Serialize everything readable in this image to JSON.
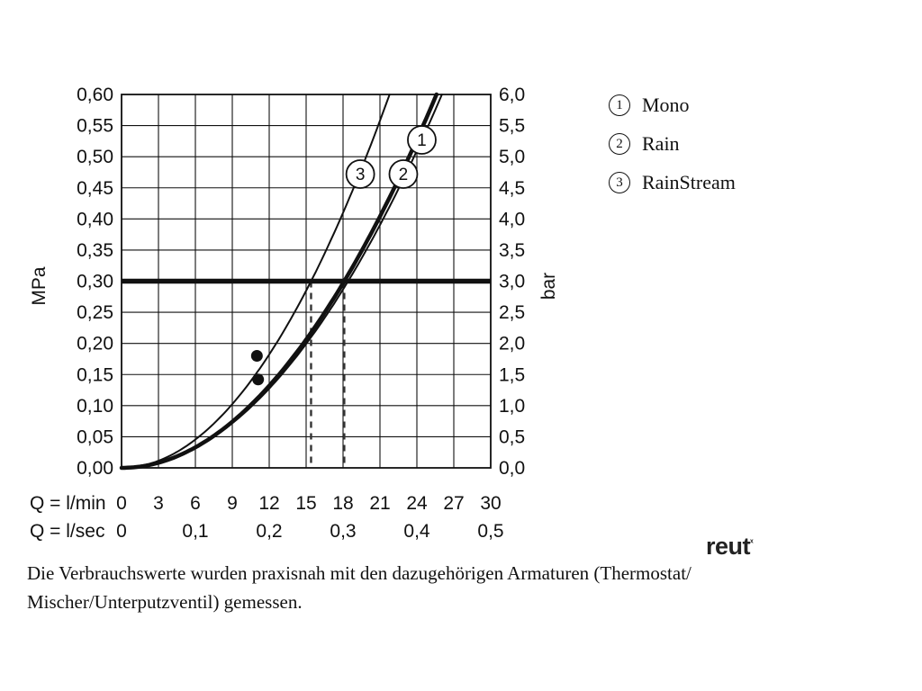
{
  "chart_data": {
    "type": "line",
    "x_axis": {
      "label": "Q = l/min",
      "max": 30,
      "tick_step": 3,
      "tick_labels": [
        "0",
        "3",
        "6",
        "9",
        "12",
        "15",
        "18",
        "21",
        "24",
        "27",
        "30"
      ]
    },
    "x_axis2": {
      "label": "Q = l/sec",
      "tick_step": 6,
      "tick_labels": [
        "0",
        "0,1",
        "0,2",
        "0,3",
        "0,4",
        "0,5"
      ]
    },
    "y_axis_left": {
      "label": "MPa",
      "max": 0.6,
      "tick_step": 0.05,
      "tick_labels": [
        "0,00",
        "0,05",
        "0,10",
        "0,15",
        "0,20",
        "0,25",
        "0,30",
        "0,35",
        "0,40",
        "0,45",
        "0,50",
        "0,55",
        "0,60"
      ]
    },
    "y_axis_right": {
      "label": "bar",
      "tick_labels": [
        "0,0",
        "0,5",
        "1,0",
        "1,5",
        "2,0",
        "2,5",
        "3,0",
        "3,5",
        "4,0",
        "4,5",
        "5,0",
        "5,5",
        "6,0"
      ]
    },
    "series": [
      {
        "num": "1",
        "name": "Mono",
        "k": 0.000885,
        "stroke_width": 2,
        "label_q": 24.4,
        "label_p": 0.527
      },
      {
        "num": "2",
        "name": "Rain",
        "k": 0.000916,
        "stroke_width": 4.5,
        "label_q": 22.9,
        "label_p": 0.472
      },
      {
        "num": "3",
        "name": "RainStream",
        "k": 0.001265,
        "stroke_width": 2,
        "label_q": 19.4,
        "label_p": 0.472
      }
    ],
    "reference_p": 0.3,
    "dashed_guides_q": [
      15.4,
      18.1
    ],
    "points": [
      {
        "q": 11.0,
        "p": 0.18
      },
      {
        "q": 11.1,
        "p": 0.142
      }
    ]
  },
  "legend": {
    "items": [
      {
        "num": "1",
        "label": "Mono"
      },
      {
        "num": "2",
        "label": "Rain"
      },
      {
        "num": "3",
        "label": "RainStream"
      }
    ]
  },
  "footnote": {
    "lines": [
      "Die Verbrauchswerte wurden praxisnah mit den dazugehörigen Armaturen (Thermostat/",
      "Mischer/Unterputzventil) gemessen."
    ]
  },
  "logo": {
    "text": "reut",
    "mark": "ˣ"
  }
}
